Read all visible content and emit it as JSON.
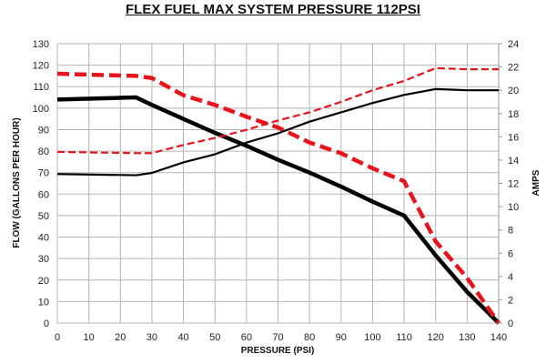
{
  "chart_data": {
    "type": "line",
    "title": "FLEX FUEL MAX SYSTEM PRESSURE 112PSI",
    "xlabel": "PRESSURE (PSI)",
    "ylabel": "FLOW (GALLONS PER HOUR)",
    "y2label": "AMPS",
    "xlim": [
      0,
      140
    ],
    "ylim": [
      0,
      130
    ],
    "y2lim": [
      0,
      24
    ],
    "xticks": [
      0,
      10,
      20,
      30,
      40,
      50,
      60,
      70,
      80,
      90,
      100,
      110,
      120,
      130,
      140
    ],
    "yticks": [
      0,
      10,
      20,
      30,
      40,
      50,
      60,
      70,
      80,
      90,
      100,
      110,
      120,
      130
    ],
    "y2ticks": [
      0,
      2,
      4,
      6,
      8,
      10,
      12,
      14,
      16,
      18,
      20,
      22,
      24
    ],
    "grid": true,
    "x": [
      0,
      25,
      30,
      40,
      50,
      60,
      70,
      80,
      90,
      100,
      110,
      120,
      130,
      140
    ],
    "series": [
      {
        "name": "flow-black",
        "axis": "left",
        "color": "#000000",
        "style": "solid-thick",
        "values": [
          104,
          105,
          101.5,
          95,
          88.5,
          82.5,
          76,
          70,
          63.5,
          56.5,
          50,
          31.5,
          14.5,
          0
        ]
      },
      {
        "name": "flow-red",
        "axis": "left",
        "color": "#e8141b",
        "style": "dashed-thick",
        "values": [
          116,
          115,
          114,
          106,
          101.5,
          96,
          91,
          84,
          79,
          72,
          66,
          38,
          21,
          0
        ]
      },
      {
        "name": "amps-black",
        "axis": "right",
        "color": "#000000",
        "style": "solid-thin",
        "values": [
          12.8,
          12.7,
          12.9,
          13.8,
          14.5,
          15.5,
          16.3,
          17.3,
          18.1,
          18.9,
          19.6,
          20.1,
          20.0,
          20.0
        ]
      },
      {
        "name": "amps-red",
        "axis": "right",
        "color": "#e8141b",
        "style": "dashed-thin",
        "values": [
          14.7,
          14.6,
          14.6,
          15.3,
          15.9,
          16.6,
          17.4,
          18.1,
          19.0,
          20.0,
          20.8,
          21.9,
          21.8,
          21.8
        ]
      }
    ]
  }
}
